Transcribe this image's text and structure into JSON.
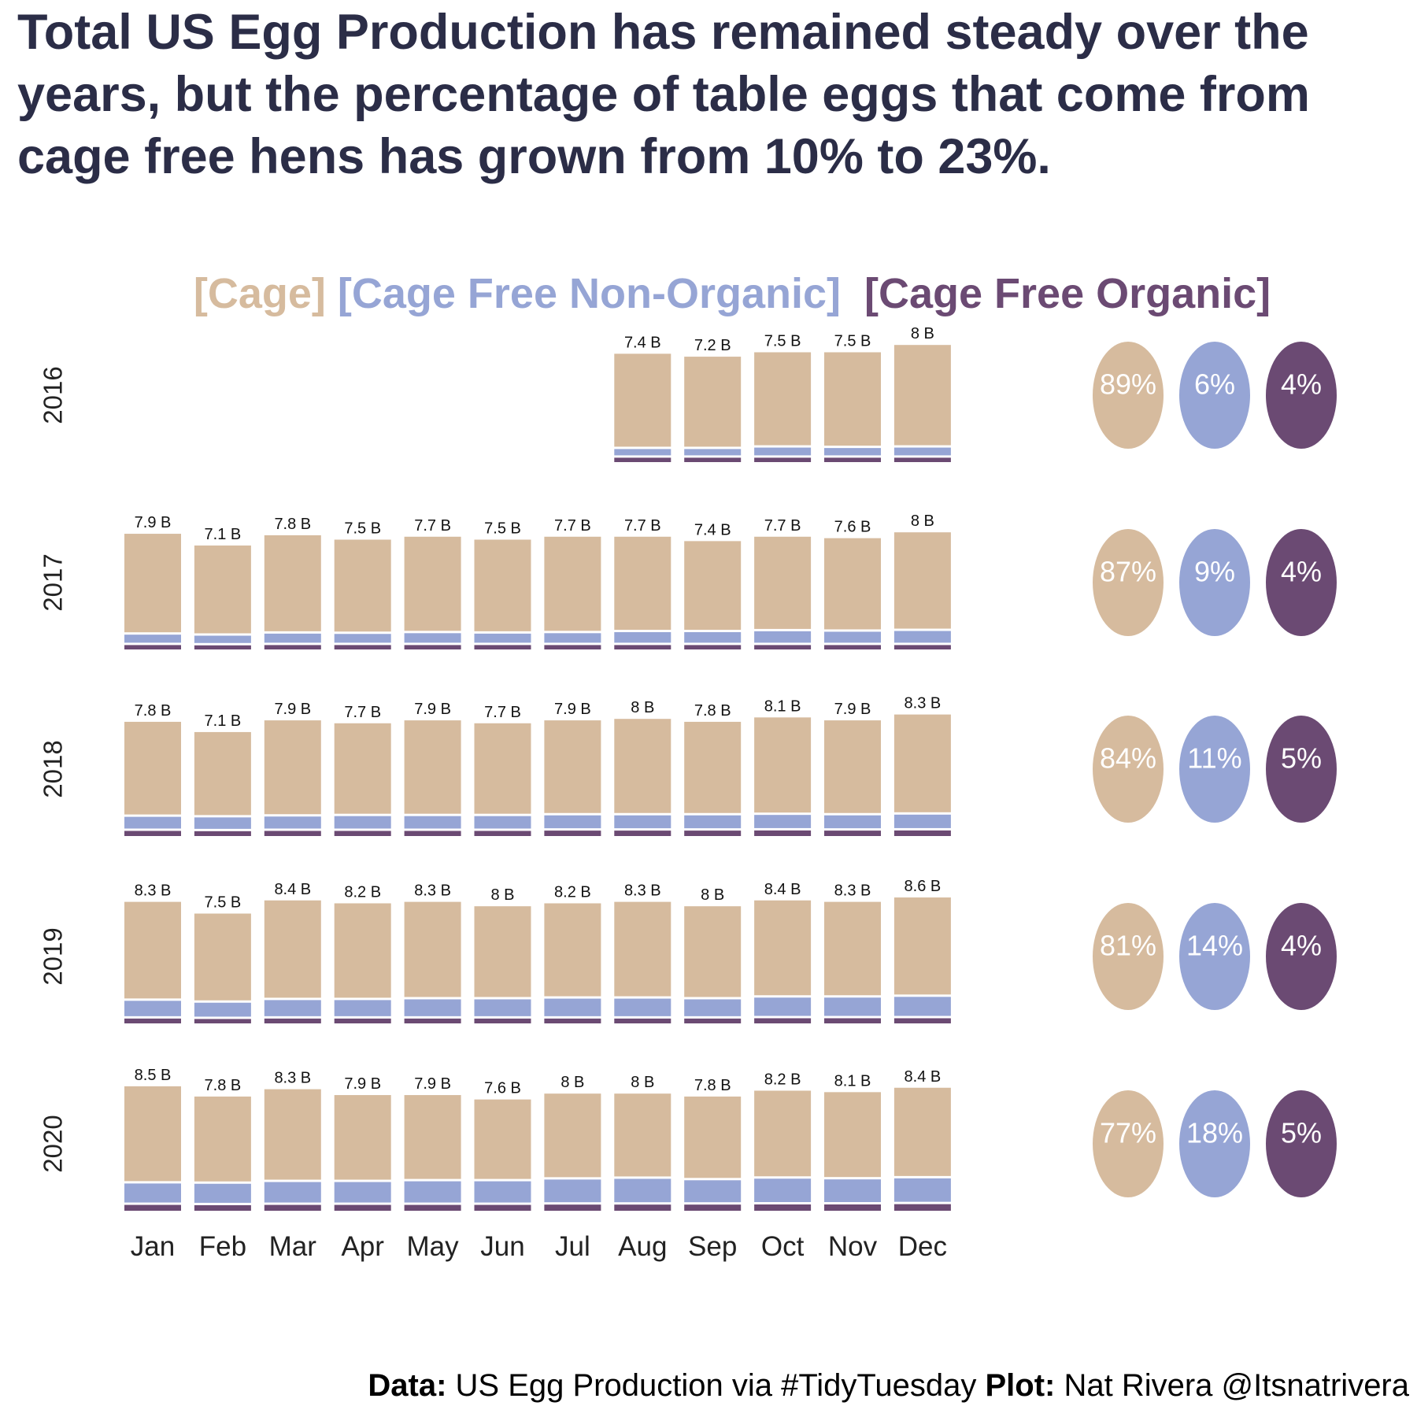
{
  "title": "Total US Egg Production has remained steady over the years, but the percentage of table eggs that come from cage free hens has grown from 10% to 23%.",
  "legend": [
    {
      "label": "[Cage]",
      "color": "#d6bb9e"
    },
    {
      "label": "[Cage Free Non-Organic]",
      "color": "#96a5d5"
    },
    {
      "label": "[Cage Free Organic]",
      "color": "#6b4a73"
    }
  ],
  "caption": {
    "data_label": "Data:",
    "data_text": "US Egg Production via #TidyTuesday",
    "plot_label": "Plot:",
    "plot_text": "Nat Rivera @Itsnatrivera"
  },
  "chart_data": {
    "type": "bar",
    "stacked": true,
    "facet": "year",
    "months": [
      "Jan",
      "Feb",
      "Mar",
      "Apr",
      "May",
      "Jun",
      "Jul",
      "Aug",
      "Sep",
      "Oct",
      "Nov",
      "Dec"
    ],
    "colors": {
      "cage": "#d6bb9e",
      "cage_free_non_organic": "#96a5d5",
      "cage_free_organic": "#6b4a73"
    },
    "years": [
      {
        "year": "2016",
        "totals": [
          null,
          null,
          null,
          null,
          null,
          null,
          null,
          7.4,
          7.2,
          7.5,
          7.5,
          8
        ],
        "labels": [
          "",
          "",
          "",
          "",
          "",
          "",
          "",
          "7.4 B",
          "7.2 B",
          "7.5 B",
          "7.5 B",
          "8 B"
        ],
        "non_organic": [
          null,
          null,
          null,
          null,
          null,
          null,
          null,
          0.43,
          0.43,
          0.53,
          0.5,
          0.53
        ],
        "organic": [
          null,
          null,
          null,
          null,
          null,
          null,
          null,
          0.3,
          0.3,
          0.3,
          0.3,
          0.3
        ],
        "shares": [
          "89%",
          "6%",
          "4%"
        ]
      },
      {
        "year": "2017",
        "totals": [
          7.9,
          7.1,
          7.8,
          7.5,
          7.7,
          7.5,
          7.7,
          7.7,
          7.4,
          7.7,
          7.6,
          8
        ],
        "labels": [
          "7.9 B",
          "7.1 B",
          "7.8 B",
          "7.5 B",
          "7.7 B",
          "7.5 B",
          "7.7 B",
          "7.7 B",
          "7.4 B",
          "7.7 B",
          "7.6 B",
          "8 B"
        ],
        "non_organic": [
          0.55,
          0.5,
          0.62,
          0.6,
          0.65,
          0.62,
          0.65,
          0.72,
          0.72,
          0.78,
          0.75,
          0.8
        ],
        "organic": [
          0.3,
          0.28,
          0.3,
          0.3,
          0.3,
          0.3,
          0.3,
          0.3,
          0.3,
          0.3,
          0.3,
          0.3
        ],
        "shares": [
          "87%",
          "9%",
          "4%"
        ]
      },
      {
        "year": "2018",
        "totals": [
          7.8,
          7.1,
          7.9,
          7.7,
          7.9,
          7.7,
          7.9,
          8,
          7.8,
          8.1,
          7.9,
          8.3
        ],
        "labels": [
          "7.8 B",
          "7.1 B",
          "7.9 B",
          "7.7 B",
          "7.9 B",
          "7.7 B",
          "7.9 B",
          "8 B",
          "7.8 B",
          "8.1 B",
          "7.9 B",
          "8.3 B"
        ],
        "non_organic": [
          0.8,
          0.78,
          0.82,
          0.85,
          0.85,
          0.85,
          0.88,
          0.88,
          0.88,
          0.9,
          0.88,
          0.92
        ],
        "organic": [
          0.35,
          0.33,
          0.35,
          0.35,
          0.35,
          0.35,
          0.37,
          0.37,
          0.37,
          0.38,
          0.37,
          0.38
        ],
        "shares": [
          "84%",
          "11%",
          "5%"
        ]
      },
      {
        "year": "2019",
        "totals": [
          8.3,
          7.5,
          8.4,
          8.2,
          8.3,
          8,
          8.2,
          8.3,
          8,
          8.4,
          8.3,
          8.6
        ],
        "labels": [
          "8.3 B",
          "7.5 B",
          "8.4 B",
          "8.2 B",
          "8.3 B",
          "8 B",
          "8.2 B",
          "8.3 B",
          "8 B",
          "8.4 B",
          "8.3 B",
          "8.6 B"
        ],
        "non_organic": [
          1.05,
          0.95,
          1.1,
          1.1,
          1.15,
          1.15,
          1.2,
          1.2,
          1.15,
          1.25,
          1.25,
          1.3
        ],
        "organic": [
          0.33,
          0.3,
          0.33,
          0.33,
          0.33,
          0.33,
          0.33,
          0.33,
          0.33,
          0.35,
          0.35,
          0.35
        ],
        "shares": [
          "81%",
          "14%",
          "4%"
        ]
      },
      {
        "year": "2020",
        "totals": [
          8.5,
          7.8,
          8.3,
          7.9,
          7.9,
          7.6,
          8,
          8,
          7.8,
          8.2,
          8.1,
          8.4
        ],
        "labels": [
          "8.5 B",
          "7.8 B",
          "8.3 B",
          "7.9 B",
          "7.9 B",
          "7.6 B",
          "8 B",
          "8 B",
          "7.8 B",
          "8.2 B",
          "8.1 B",
          "8.4 B"
        ],
        "non_organic": [
          1.3,
          1.3,
          1.4,
          1.4,
          1.45,
          1.45,
          1.55,
          1.6,
          1.5,
          1.6,
          1.55,
          1.6
        ],
        "organic": [
          0.4,
          0.38,
          0.4,
          0.4,
          0.4,
          0.4,
          0.42,
          0.42,
          0.42,
          0.43,
          0.43,
          0.45
        ],
        "shares": [
          "77%",
          "18%",
          "5%"
        ]
      }
    ]
  }
}
